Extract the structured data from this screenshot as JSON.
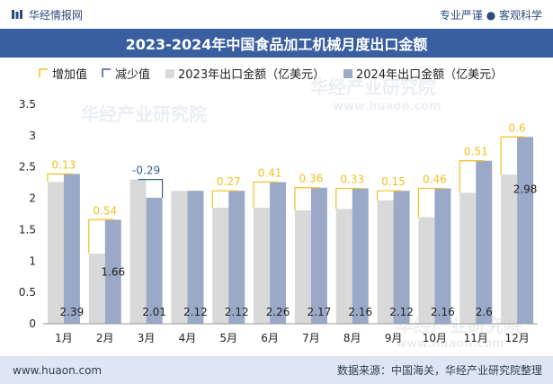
{
  "header": {
    "brand": "华经情报网",
    "slogan": "专业严谨 ● 客观科学"
  },
  "footer": {
    "url": "www.huaon.com",
    "source": "数据来源：中国海关，华经产业研究院整理"
  },
  "watermark": {
    "text": "华经产业研究院",
    "url": "www.huaon.com"
  },
  "colors": {
    "bar2023": "#d9d9d9",
    "bar2024": "#9aa9c7",
    "increase": "#f0c020",
    "decrease": "#3a5f8f",
    "title_bg": "#3a5fa0",
    "footer_bg": "#dde6f2"
  },
  "chart_data": {
    "type": "bar",
    "title": "2023-2024年中国食品加工机械月度出口金额",
    "categories": [
      "1月",
      "2月",
      "3月",
      "4月",
      "5月",
      "6月",
      "7月",
      "8月",
      "9月",
      "10月",
      "11月",
      "12月"
    ],
    "series": [
      {
        "name": "2023年出口金额（亿美元）",
        "values": [
          2.26,
          1.12,
          2.3,
          2.12,
          1.85,
          1.85,
          1.81,
          1.83,
          1.97,
          1.7,
          2.09,
          2.38
        ]
      },
      {
        "name": "2024年出口金额（亿美元）",
        "values": [
          2.39,
          1.66,
          2.01,
          2.12,
          2.12,
          2.26,
          2.17,
          2.16,
          2.12,
          2.16,
          2.6,
          2.98
        ]
      }
    ],
    "value_labels_2024": [
      "2.39",
      "1.66",
      "2.01",
      "2.12",
      "2.12",
      "2.26",
      "2.17",
      "2.16",
      "2.12",
      "2.16",
      "2.6",
      "2.98"
    ],
    "change": [
      "0.13",
      "0.54",
      "-0.29",
      "",
      "0.27",
      "0.41",
      "0.36",
      "0.33",
      "0.15",
      "0.46",
      "0.51",
      "0.6"
    ],
    "legend": [
      "增加值",
      "减少值",
      "2023年出口金额（亿美元）",
      "2024年出口金额（亿美元）"
    ],
    "legend_position": "top",
    "y_ticks": [
      "0",
      "0.5",
      "1",
      "1.5",
      "2",
      "2.5",
      "3",
      "3.5"
    ],
    "ylim": [
      0,
      3.5
    ],
    "grid": false
  }
}
